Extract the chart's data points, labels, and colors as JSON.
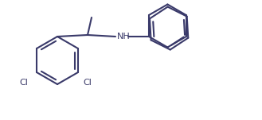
{
  "background": "#ffffff",
  "line_color": "#3a3a6a",
  "line_width": 1.5,
  "label_color_black": "#000000",
  "label_color_cl": "#3a3a6a",
  "NH_label": "NH",
  "Cl1_label": "Cl",
  "Cl2_label": "Cl"
}
